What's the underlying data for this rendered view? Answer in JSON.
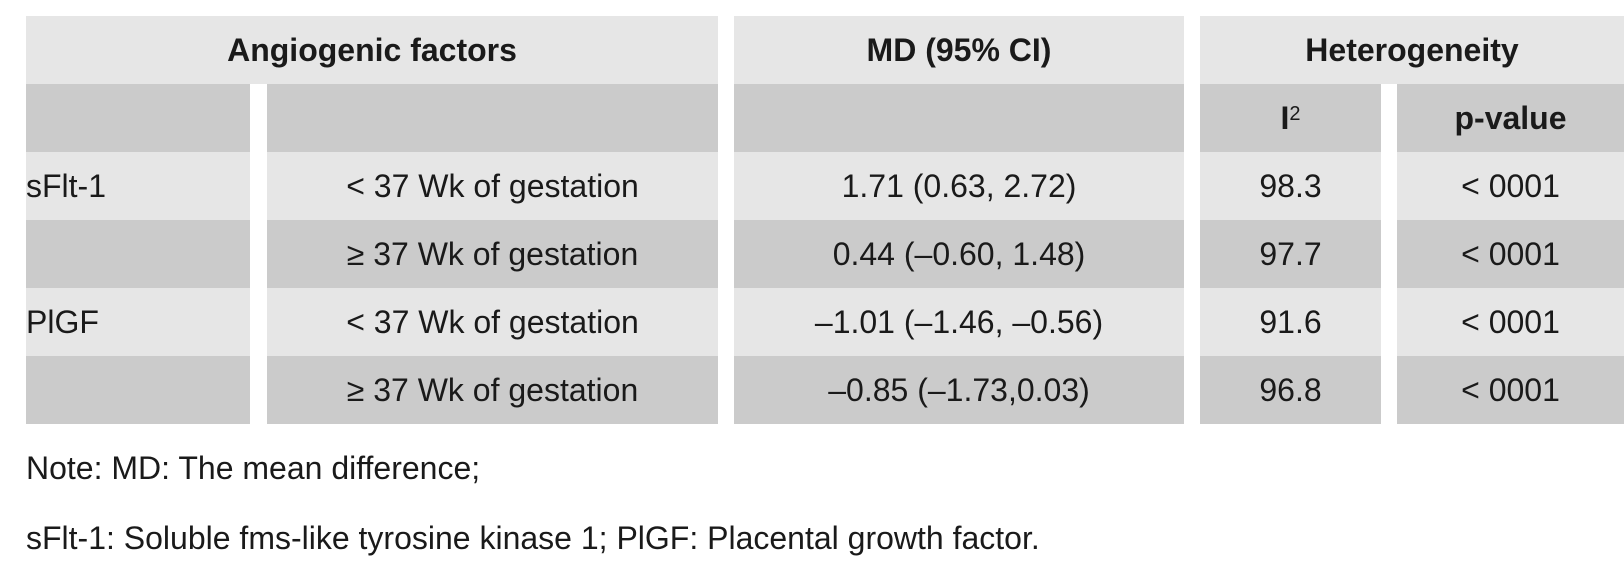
{
  "headers": {
    "group1": "Angiogenic factors",
    "group2": "MD (95% CI)",
    "group3": "Heterogeneity",
    "i2_base": "I",
    "i2_sup": "2",
    "pvalue": "p-value"
  },
  "rows": [
    {
      "factor": "sFlt-1",
      "subgroup": "< 37 Wk of gestation",
      "md": "1.71 (0.63, 2.72)",
      "i2": "98.3",
      "p": "< 0001"
    },
    {
      "factor": "",
      "subgroup": "≥ 37 Wk of gestation",
      "md": "0.44 (–0.60, 1.48)",
      "i2": "97.7",
      "p": "< 0001"
    },
    {
      "factor": "PlGF",
      "subgroup": "< 37 Wk of gestation",
      "md": "–1.01 (–1.46, –0.56)",
      "i2": "91.6",
      "p": "< 0001"
    },
    {
      "factor": "",
      "subgroup": "≥ 37 Wk of gestation",
      "md": "–0.85 (–1.73,0.03)",
      "i2": "96.8",
      "p": "< 0001"
    }
  ],
  "notes": [
    "Note: MD: The mean difference;",
    "sFlt-1: Soluble fms-like tyrosine kinase 1; PlGF: Placental growth factor."
  ]
}
